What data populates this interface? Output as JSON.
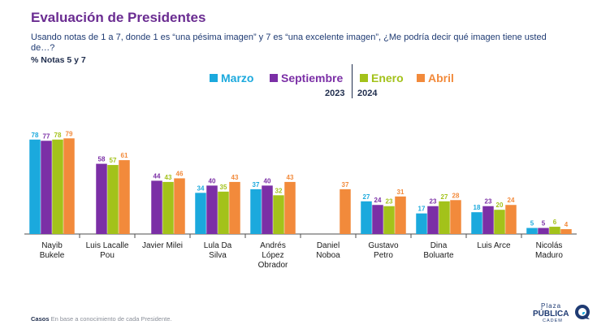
{
  "header": {
    "title": "Evaluación de Presidentes",
    "subtitle": "Usando notas de 1 a 7, donde 1 es “una pésima imagen” y 7 es “una excelente imagen”, ¿Me podría decir qué imagen tiene usted de…?",
    "note": "% Notas 5 y 7"
  },
  "years": {
    "left": "2023",
    "right": "2024"
  },
  "footer": {
    "label": "Casos",
    "text": "En base a conocimiento de cada Presidente."
  },
  "logo": {
    "line1": "Plaza",
    "line2": "PÚBLICA",
    "line3": "CADEM"
  },
  "colors": {
    "Marzo": "#1ba9dd",
    "Septiembre": "#7b2fa6",
    "Enero": "#a3c21a",
    "Abril": "#f28a3b"
  },
  "chart_data": {
    "type": "bar",
    "categories": [
      [
        "Nayib",
        "Bukele"
      ],
      [
        "Luis Lacalle",
        "Pou"
      ],
      [
        "Javier Milei"
      ],
      [
        "Lula Da",
        "Silva"
      ],
      [
        "Andrés",
        "López",
        "Obrador"
      ],
      [
        "Daniel",
        "Noboa"
      ],
      [
        "Gustavo",
        "Petro"
      ],
      [
        "Dina",
        "Boluarte"
      ],
      [
        "Luis Arce"
      ],
      [
        "Nicolás",
        "Maduro"
      ]
    ],
    "series": [
      {
        "name": "Marzo",
        "values": [
          78,
          null,
          null,
          34,
          37,
          null,
          27,
          17,
          18,
          5
        ]
      },
      {
        "name": "Septiembre",
        "values": [
          77,
          58,
          44,
          40,
          40,
          null,
          24,
          23,
          23,
          5
        ]
      },
      {
        "name": "Enero",
        "values": [
          78,
          57,
          43,
          35,
          32,
          null,
          23,
          27,
          20,
          6
        ]
      },
      {
        "name": "Abril",
        "values": [
          79,
          61,
          46,
          43,
          43,
          37,
          31,
          28,
          24,
          4
        ]
      }
    ],
    "ylim": [
      0,
      100
    ],
    "legend": "top-center"
  }
}
